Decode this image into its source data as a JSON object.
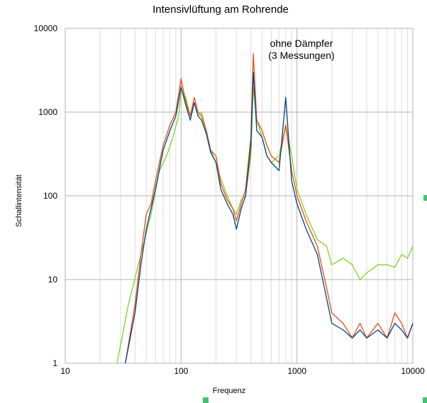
{
  "chart_data": {
    "type": "line",
    "title": "Intensivlüftung am Rohrende",
    "xlabel": "Frequenz",
    "ylabel": "Schallintensität",
    "annotation": [
      "ohne Dämpfer",
      "(3 Messungen)"
    ],
    "x_scale": "log",
    "y_scale": "log",
    "xlim": [
      10,
      10000
    ],
    "ylim": [
      1,
      10000
    ],
    "x_ticks": [
      10,
      100,
      1000,
      10000
    ],
    "y_ticks": [
      1,
      10,
      100,
      1000,
      10000
    ],
    "x_tick_labels": [
      "10",
      "100",
      "1000",
      "10000"
    ],
    "y_tick_labels": [
      "1",
      "10",
      "100",
      "1000",
      "10000"
    ],
    "grid": true,
    "legend": "none",
    "series": [
      {
        "color": "#7fd321",
        "x": [
          28,
          35,
          45,
          55,
          65,
          75,
          85,
          95,
          100,
          110,
          120,
          130,
          140,
          150,
          165,
          180,
          200,
          220,
          250,
          280,
          300,
          330,
          360,
          400,
          420,
          450,
          500,
          550,
          600,
          700,
          800,
          900,
          1000,
          1200,
          1500,
          1800,
          2000,
          2500,
          3000,
          3500,
          4000,
          5000,
          6000,
          7000,
          8000,
          9000,
          10000
        ],
        "y": [
          1,
          5,
          20,
          60,
          200,
          300,
          500,
          900,
          1800,
          1500,
          900,
          1300,
          900,
          1000,
          600,
          350,
          250,
          160,
          100,
          70,
          60,
          90,
          100,
          300,
          2000,
          800,
          500,
          300,
          250,
          300,
          700,
          300,
          120,
          60,
          30,
          25,
          15,
          18,
          15,
          10,
          12,
          15,
          15,
          14,
          20,
          18,
          25
        ]
      },
      {
        "color": "#ee4a14",
        "x": [
          33,
          40,
          45,
          50,
          55,
          60,
          70,
          80,
          90,
          100,
          110,
          120,
          130,
          140,
          150,
          165,
          180,
          200,
          220,
          250,
          280,
          300,
          330,
          360,
          400,
          420,
          450,
          500,
          550,
          600,
          700,
          800,
          900,
          1000,
          1200,
          1500,
          1800,
          2000,
          2500,
          3000,
          3500,
          4000,
          5000,
          6000,
          7000,
          8000,
          9000,
          10000
        ],
        "y": [
          1,
          5,
          20,
          60,
          80,
          150,
          400,
          700,
          1000,
          2500,
          1300,
          900,
          1500,
          1000,
          900,
          600,
          350,
          300,
          140,
          90,
          70,
          50,
          80,
          120,
          500,
          5000,
          800,
          600,
          400,
          300,
          250,
          700,
          200,
          100,
          50,
          25,
          8,
          4,
          3,
          2,
          3,
          2,
          3,
          2,
          4,
          3,
          2,
          3
        ]
      },
      {
        "color": "#004586",
        "x": [
          33,
          40,
          45,
          50,
          55,
          60,
          70,
          80,
          90,
          100,
          110,
          120,
          130,
          140,
          150,
          165,
          180,
          200,
          220,
          250,
          280,
          300,
          330,
          360,
          400,
          420,
          450,
          500,
          550,
          600,
          700,
          800,
          900,
          1000,
          1200,
          1500,
          1800,
          2000,
          2500,
          3000,
          3500,
          4000,
          5000,
          6000,
          7000,
          8000,
          9000,
          10000
        ],
        "y": [
          1,
          4,
          15,
          40,
          70,
          120,
          350,
          600,
          900,
          2000,
          1200,
          800,
          1300,
          900,
          800,
          550,
          330,
          250,
          120,
          80,
          60,
          40,
          70,
          100,
          400,
          3000,
          600,
          500,
          300,
          250,
          200,
          1500,
          150,
          80,
          40,
          20,
          6,
          3,
          2.5,
          2,
          2.5,
          2,
          2.5,
          2,
          3,
          2.5,
          2,
          3
        ]
      }
    ]
  }
}
